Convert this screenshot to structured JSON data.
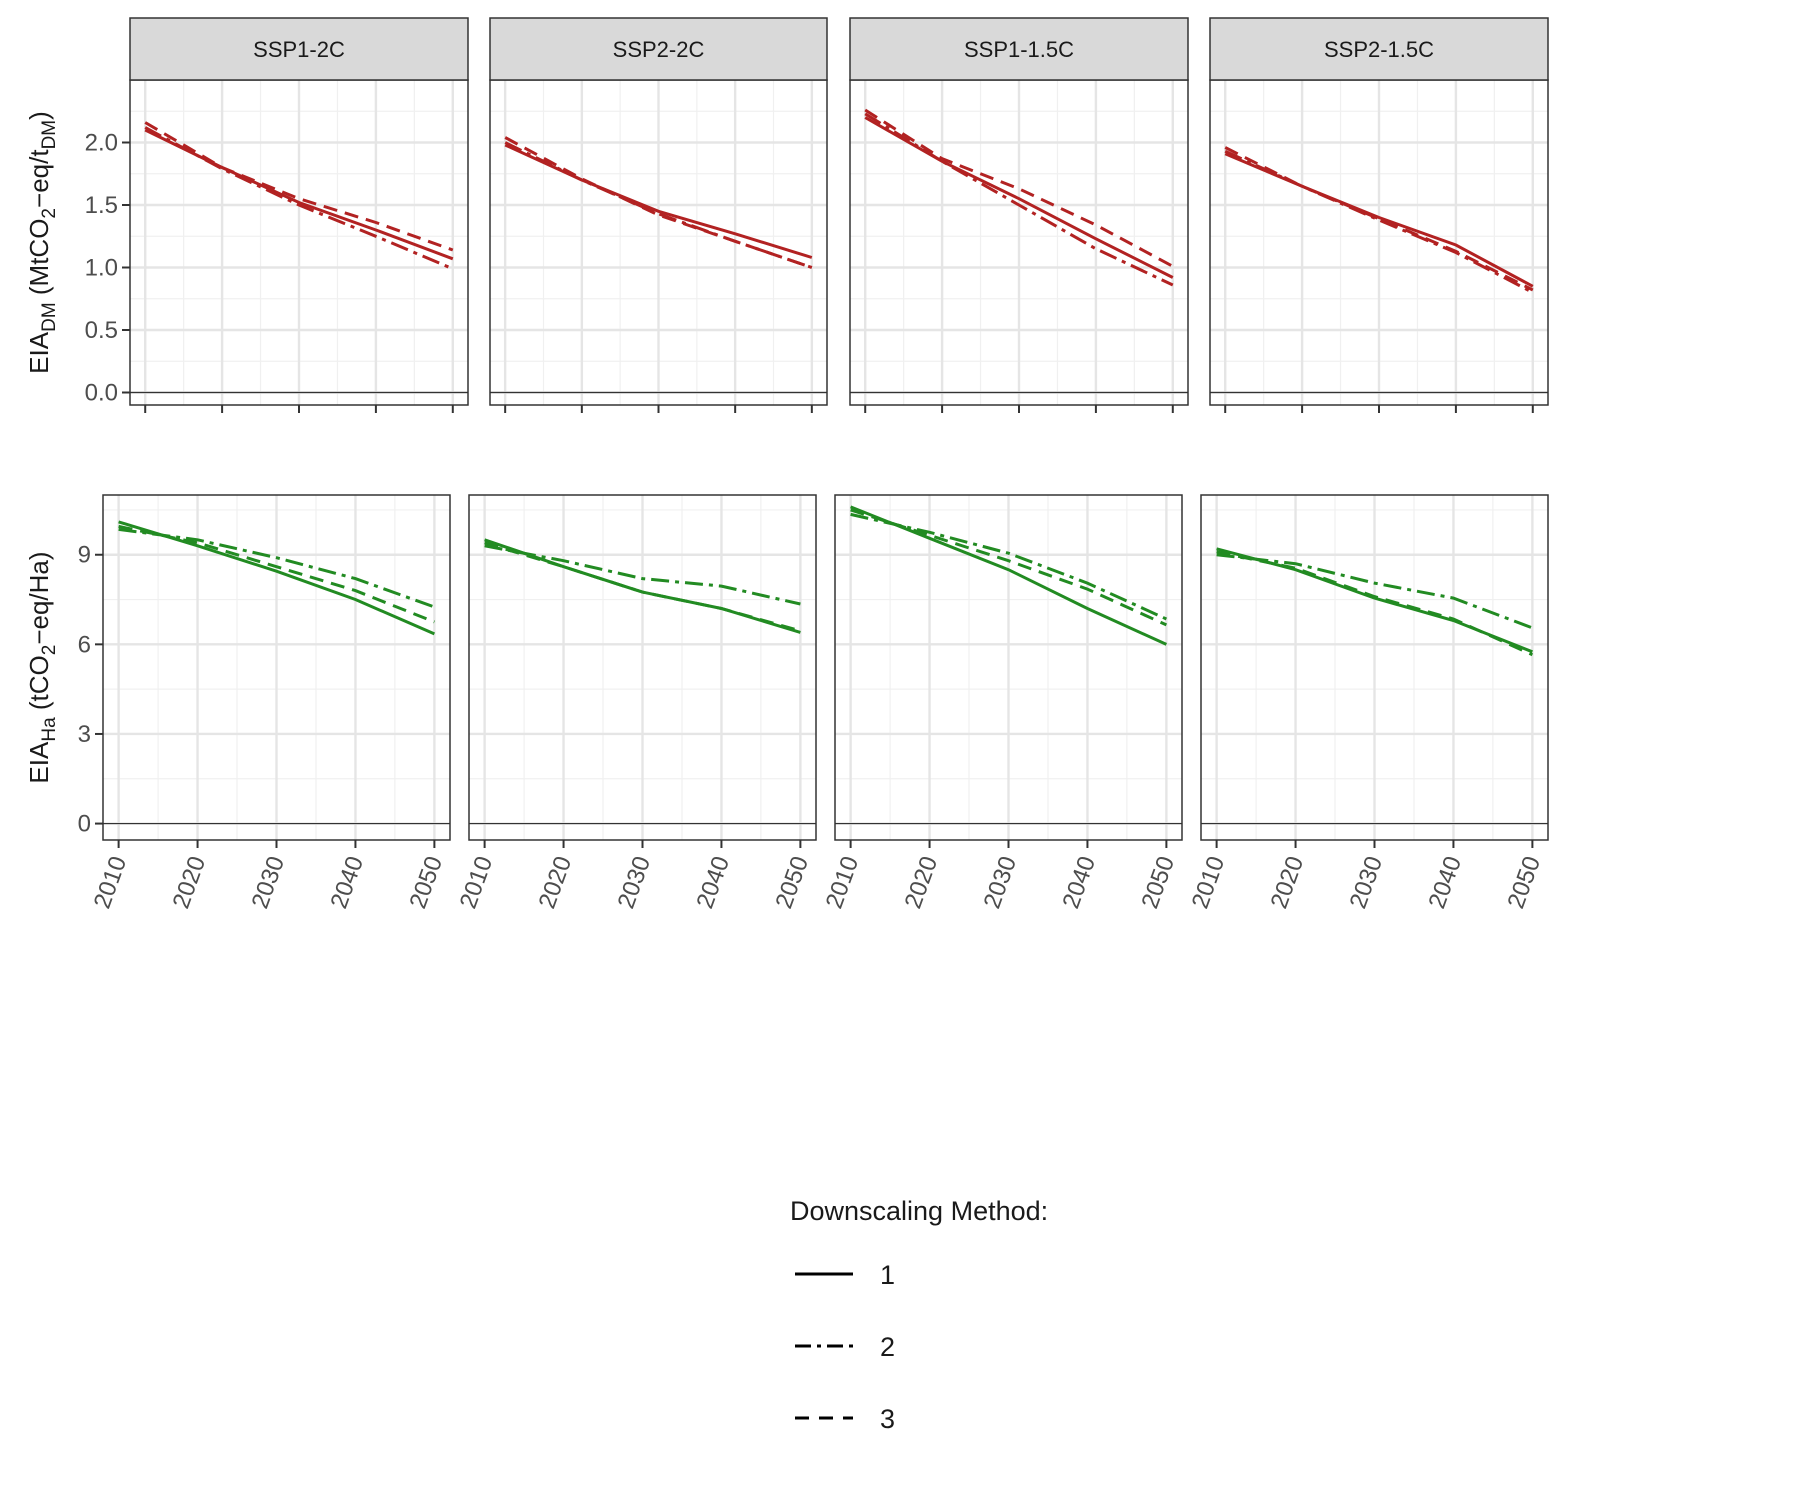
{
  "chart_data": {
    "type": "line",
    "facets": [
      "SSP1-2C",
      "SSP2-2C",
      "SSP1-1.5C",
      "SSP2-1.5C"
    ],
    "x_ticks": [
      "2010",
      "2020",
      "2030",
      "2040",
      "2050"
    ],
    "xlim": [
      2010,
      2050
    ],
    "legend": {
      "title": "Downscaling Method:",
      "entries": [
        {
          "label": "1",
          "style": "solid"
        },
        {
          "label": "2",
          "style": "dashdot"
        },
        {
          "label": "3",
          "style": "dashed"
        }
      ],
      "position": "bottom"
    },
    "panels": [
      {
        "row": "top",
        "ylabel": {
          "base": "EIA",
          "sub": "DM",
          "text1": " (MtCO",
          "sub2": "2",
          "text2": "−eq/t",
          "sub3": "DM",
          "text3": ")"
        },
        "ylim": [
          -0.1,
          2.5
        ],
        "y_ticks": [
          0.0,
          0.5,
          1.0,
          1.5,
          2.0
        ],
        "y_tick_labels": [
          "0.0",
          "0.5",
          "1.0",
          "1.5",
          "2.0"
        ],
        "color": "#b22222",
        "panels": [
          {
            "facet": "SSP1-2C",
            "series": [
              {
                "name": "1",
                "style": "solid",
                "x": [
                  2010,
                  2020,
                  2030,
                  2040,
                  2050
                ],
                "y": [
                  2.1,
                  1.8,
                  1.52,
                  1.3,
                  1.07
                ]
              },
              {
                "name": "2",
                "style": "dashdot",
                "x": [
                  2010,
                  2020,
                  2030,
                  2040,
                  2050
                ],
                "y": [
                  2.12,
                  1.79,
                  1.5,
                  1.25,
                  0.99
                ]
              },
              {
                "name": "3",
                "style": "dashed",
                "x": [
                  2010,
                  2020,
                  2030,
                  2040,
                  2050
                ],
                "y": [
                  2.16,
                  1.8,
                  1.55,
                  1.36,
                  1.14
                ]
              }
            ]
          },
          {
            "facet": "SSP2-2C",
            "series": [
              {
                "name": "1",
                "style": "solid",
                "x": [
                  2010,
                  2020,
                  2030,
                  2040,
                  2050
                ],
                "y": [
                  1.98,
                  1.7,
                  1.45,
                  1.27,
                  1.08
                ]
              },
              {
                "name": "2",
                "style": "dashdot",
                "x": [
                  2010,
                  2020,
                  2030,
                  2040,
                  2050
                ],
                "y": [
                  2.0,
                  1.7,
                  1.43,
                  1.21,
                  1.0
                ]
              },
              {
                "name": "3",
                "style": "dashed",
                "x": [
                  2010,
                  2020,
                  2030,
                  2040,
                  2050
                ],
                "y": [
                  2.04,
                  1.71,
                  1.42,
                  1.21,
                  1.0
                ]
              }
            ]
          },
          {
            "facet": "SSP1-1.5C",
            "series": [
              {
                "name": "1",
                "style": "solid",
                "x": [
                  2010,
                  2020,
                  2030,
                  2040,
                  2050
                ],
                "y": [
                  2.2,
                  1.85,
                  1.55,
                  1.23,
                  0.92
                ]
              },
              {
                "name": "2",
                "style": "dashdot",
                "x": [
                  2010,
                  2020,
                  2030,
                  2040,
                  2050
                ],
                "y": [
                  2.23,
                  1.85,
                  1.5,
                  1.15,
                  0.86
                ]
              },
              {
                "name": "3",
                "style": "dashed",
                "x": [
                  2010,
                  2020,
                  2030,
                  2040,
                  2050
                ],
                "y": [
                  2.26,
                  1.87,
                  1.63,
                  1.34,
                  1.01
                ]
              }
            ]
          },
          {
            "facet": "SSP2-1.5C",
            "series": [
              {
                "name": "1",
                "style": "solid",
                "x": [
                  2010,
                  2020,
                  2030,
                  2040,
                  2050
                ],
                "y": [
                  1.91,
                  1.65,
                  1.4,
                  1.18,
                  0.85
                ]
              },
              {
                "name": "2",
                "style": "dashdot",
                "x": [
                  2010,
                  2020,
                  2030,
                  2040,
                  2050
                ],
                "y": [
                  1.93,
                  1.65,
                  1.38,
                  1.12,
                  0.8
                ]
              },
              {
                "name": "3",
                "style": "dashed",
                "x": [
                  2010,
                  2020,
                  2030,
                  2040,
                  2050
                ],
                "y": [
                  1.96,
                  1.65,
                  1.39,
                  1.13,
                  0.82
                ]
              }
            ]
          }
        ]
      },
      {
        "row": "bottom",
        "ylabel": {
          "base": "EIA",
          "sub": "Ha",
          "text1": " (tCO",
          "sub2": "2",
          "text2": "−eq/Ha)",
          "sub3": "",
          "text3": ""
        },
        "ylim": [
          -0.55,
          11.0
        ],
        "y_ticks": [
          0,
          3,
          6,
          9
        ],
        "y_tick_labels": [
          "0",
          "3",
          "6",
          "9"
        ],
        "color": "#228b22",
        "panels": [
          {
            "facet": "SSP1-2C",
            "series": [
              {
                "name": "1",
                "style": "solid",
                "x": [
                  2010,
                  2020,
                  2030,
                  2040,
                  2050
                ],
                "y": [
                  10.1,
                  9.3,
                  8.45,
                  7.5,
                  6.35
                ]
              },
              {
                "name": "2",
                "style": "dashdot",
                "x": [
                  2010,
                  2020,
                  2030,
                  2040,
                  2050
                ],
                "y": [
                  9.85,
                  9.5,
                  8.9,
                  8.2,
                  7.25
                ]
              },
              {
                "name": "3",
                "style": "dashed",
                "x": [
                  2010,
                  2020,
                  2030,
                  2040,
                  2050
                ],
                "y": [
                  9.95,
                  9.4,
                  8.6,
                  7.8,
                  6.75
                ]
              }
            ]
          },
          {
            "facet": "SSP2-2C",
            "series": [
              {
                "name": "1",
                "style": "solid",
                "x": [
                  2010,
                  2020,
                  2030,
                  2040,
                  2050
                ],
                "y": [
                  9.5,
                  8.6,
                  7.75,
                  7.2,
                  6.4
                ]
              },
              {
                "name": "2",
                "style": "dashdot",
                "x": [
                  2010,
                  2020,
                  2030,
                  2040,
                  2050
                ],
                "y": [
                  9.3,
                  8.8,
                  8.2,
                  7.95,
                  7.35
                ]
              },
              {
                "name": "3",
                "style": "dashed",
                "x": [
                  2010,
                  2020,
                  2030,
                  2040,
                  2050
                ],
                "y": [
                  9.4,
                  8.6,
                  7.75,
                  7.2,
                  6.45
                ]
              }
            ]
          },
          {
            "facet": "SSP1-1.5C",
            "series": [
              {
                "name": "1",
                "style": "solid",
                "x": [
                  2010,
                  2020,
                  2030,
                  2040,
                  2050
                ],
                "y": [
                  10.6,
                  9.55,
                  8.5,
                  7.2,
                  6.0
                ]
              },
              {
                "name": "2",
                "style": "dashdot",
                "x": [
                  2010,
                  2020,
                  2030,
                  2040,
                  2050
                ],
                "y": [
                  10.35,
                  9.75,
                  9.05,
                  8.05,
                  6.85
                ]
              },
              {
                "name": "3",
                "style": "dashed",
                "x": [
                  2010,
                  2020,
                  2030,
                  2040,
                  2050
                ],
                "y": [
                  10.5,
                  9.65,
                  8.8,
                  7.85,
                  6.65
                ]
              }
            ]
          },
          {
            "facet": "SSP2-1.5C",
            "series": [
              {
                "name": "1",
                "style": "solid",
                "x": [
                  2010,
                  2020,
                  2030,
                  2040,
                  2050
                ],
                "y": [
                  9.2,
                  8.5,
                  7.55,
                  6.8,
                  5.75
                ]
              },
              {
                "name": "2",
                "style": "dashdot",
                "x": [
                  2010,
                  2020,
                  2030,
                  2040,
                  2050
                ],
                "y": [
                  9.0,
                  8.7,
                  8.05,
                  7.55,
                  6.55
                ]
              },
              {
                "name": "3",
                "style": "dashed",
                "x": [
                  2010,
                  2020,
                  2030,
                  2040,
                  2050
                ],
                "y": [
                  9.1,
                  8.55,
                  7.6,
                  6.85,
                  5.65
                ]
              }
            ]
          }
        ]
      }
    ]
  }
}
